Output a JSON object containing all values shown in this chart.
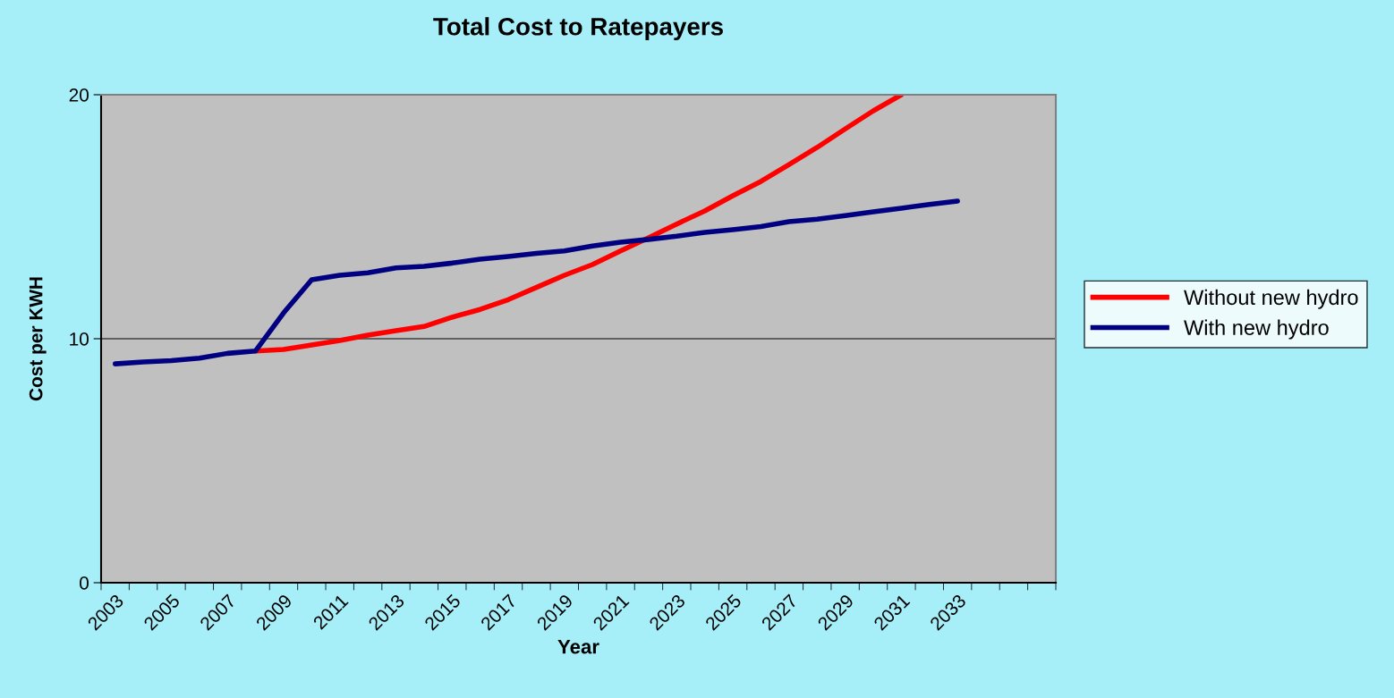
{
  "chart_data": {
    "type": "line",
    "title": "Total Cost to Ratepayers",
    "xlabel": "Year",
    "ylabel": "Cost per KWH",
    "categories": [
      "2003",
      null,
      "2005",
      null,
      "2007",
      null,
      "2009",
      null,
      "2011",
      null,
      "2013",
      null,
      "2015",
      null,
      "2017",
      null,
      "2019",
      null,
      "2021",
      null,
      "2023",
      null,
      "2025",
      null,
      "2027",
      null,
      "2029",
      null,
      "2031",
      null,
      "2033",
      null,
      null,
      null
    ],
    "series": [
      {
        "name": "Without new hydro",
        "color": "#ff0000",
        "values": [
          null,
          null,
          null,
          null,
          null,
          9.5,
          9.56,
          9.74,
          9.93,
          10.15,
          10.33,
          10.5,
          10.88,
          11.2,
          11.6,
          12.1,
          12.6,
          13.04,
          13.6,
          14.14,
          14.7,
          15.24,
          15.86,
          16.45,
          17.14,
          17.84,
          18.6,
          19.34,
          20,
          null,
          null,
          null,
          null,
          null
        ]
      },
      {
        "name": "With new hydro",
        "color": "#000080",
        "values": [
          8.97,
          9.05,
          9.1,
          9.2,
          9.4,
          9.5,
          11.06,
          12.42,
          12.6,
          12.7,
          12.9,
          12.97,
          13.1,
          13.26,
          13.37,
          13.5,
          13.6,
          13.8,
          13.96,
          14.07,
          14.2,
          14.36,
          14.47,
          14.6,
          14.8,
          14.9,
          15.05,
          15.2,
          15.35,
          15.5,
          15.64,
          null,
          null,
          null
        ]
      }
    ],
    "ylim": [
      0,
      20
    ],
    "yticks": [
      0,
      10,
      20
    ],
    "grid": "y",
    "legend": "right",
    "marker": "none",
    "line_style": "solid"
  }
}
